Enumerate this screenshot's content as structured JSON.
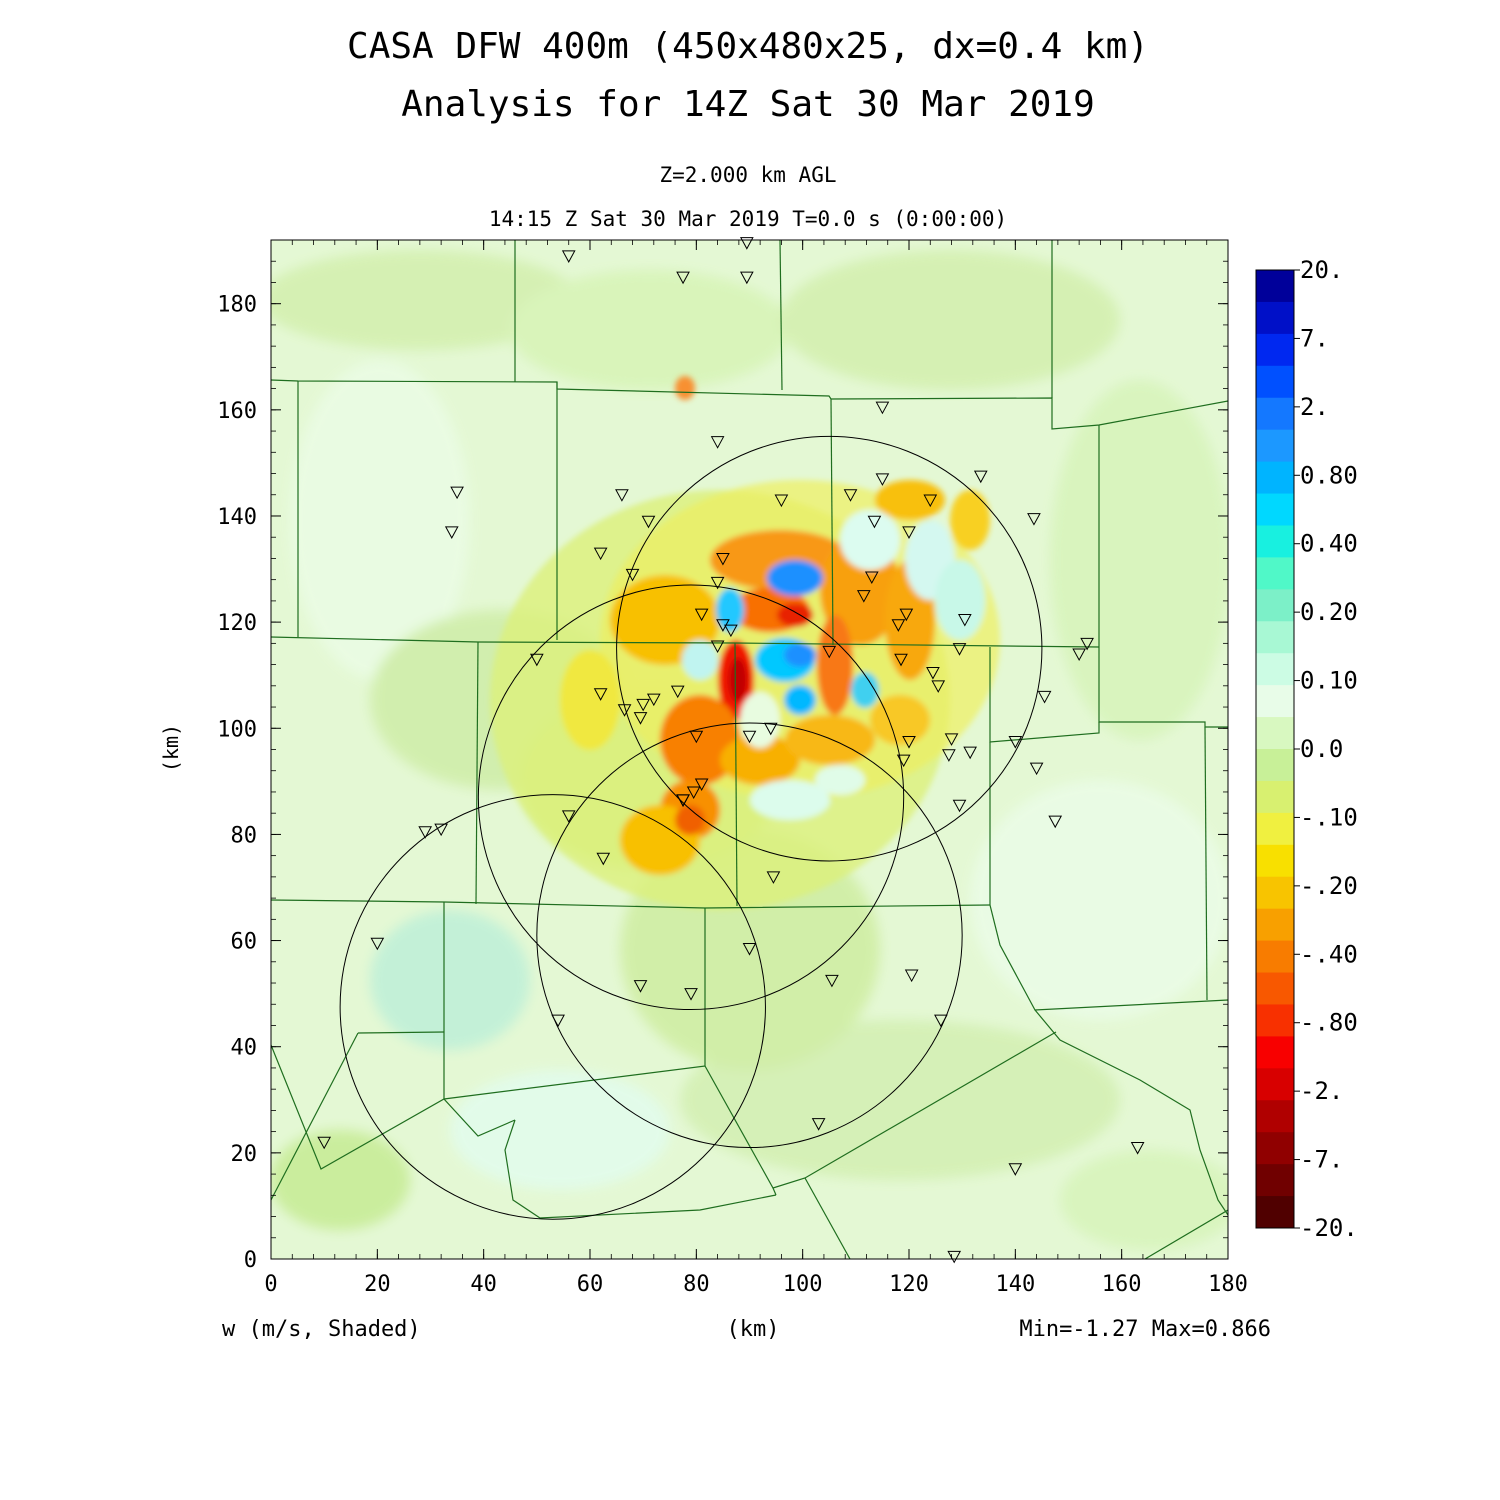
{
  "header": {
    "title_line1": "CASA DFW 400m (450x480x25, dx=0.4 km)",
    "title_line2": "Analysis for 14Z Sat 30 Mar 2019",
    "level": "Z=2.000 km AGL",
    "time": "14:15 Z Sat 30 Mar 2019    T=0.0 s (0:00:00)"
  },
  "footer": {
    "field_label": "w (m/s, Shaded)",
    "xunit": "(km)",
    "minmax": "Min=-1.27 Max=0.866"
  },
  "chart_data": {
    "type": "heatmap",
    "variable": "w",
    "xlabel": "(km)",
    "ylabel": "(km)",
    "xlim": [
      0,
      180
    ],
    "ylim": [
      0,
      192
    ],
    "xticks": [
      0,
      20,
      40,
      60,
      80,
      100,
      120,
      140,
      160,
      180
    ],
    "yticks": [
      0,
      20,
      40,
      60,
      80,
      100,
      120,
      140,
      160,
      180
    ],
    "min": -1.27,
    "max": 0.866,
    "colorbar": {
      "labels": [
        "20.",
        "7.",
        "2.",
        "0.80",
        "0.40",
        "0.20",
        "0.10",
        "0.0",
        "-.10",
        "-.20",
        "-.40",
        "-.80",
        "-2.",
        "-7.",
        "-20."
      ],
      "colors_top_to_bottom": [
        "#00009a",
        "#0010c8",
        "#0028f0",
        "#0050ff",
        "#1478ff",
        "#1c98ff",
        "#00b4ff",
        "#00d8ff",
        "#18f0e0",
        "#50f8c8",
        "#7cf0c8",
        "#a8f8d4",
        "#ccfce4",
        "#e8fce8",
        "#d8f8c0",
        "#c8f098",
        "#d8f070",
        "#f0f040",
        "#f8e000",
        "#f8c400",
        "#f8a000",
        "#f87c00",
        "#f85800",
        "#f83000",
        "#f80000",
        "#d80000",
        "#b00000",
        "#900000",
        "#700000",
        "#500000"
      ]
    },
    "radar_rings": [
      {
        "center": [
          105,
          115
        ],
        "radius": 40
      },
      {
        "center": [
          79,
          87
        ],
        "radius": 40
      },
      {
        "center": [
          90,
          61
        ],
        "radius": 40
      },
      {
        "center": [
          53,
          47.5
        ],
        "radius": 40
      }
    ],
    "stations": [
      [
        56,
        189
      ],
      [
        89.5,
        191.5
      ],
      [
        89.5,
        185
      ],
      [
        35,
        144.5
      ],
      [
        34,
        137
      ],
      [
        66,
        144
      ],
      [
        71,
        139
      ],
      [
        84,
        154
      ],
      [
        77.5,
        185
      ],
      [
        115,
        160.5
      ],
      [
        115,
        147
      ],
      [
        109,
        144
      ],
      [
        96,
        143
      ],
      [
        124,
        143
      ],
      [
        133.5,
        147.5
      ],
      [
        143.5,
        139.5
      ],
      [
        113.5,
        139
      ],
      [
        120,
        137
      ],
      [
        62,
        133
      ],
      [
        68,
        129
      ],
      [
        85,
        132
      ],
      [
        84,
        127.5
      ],
      [
        113,
        128.5
      ],
      [
        111.5,
        125
      ],
      [
        81,
        121.5
      ],
      [
        119.5,
        121.5
      ],
      [
        118,
        119.5
      ],
      [
        130.5,
        120.5
      ],
      [
        85,
        119.5
      ],
      [
        86.5,
        118.5
      ],
      [
        84,
        115.5
      ],
      [
        105,
        114.5
      ],
      [
        118.5,
        113
      ],
      [
        129.5,
        115
      ],
      [
        124.5,
        110.5
      ],
      [
        125.5,
        108
      ],
      [
        50,
        113
      ],
      [
        153.5,
        116
      ],
      [
        152,
        114
      ],
      [
        62,
        106.5
      ],
      [
        76.5,
        107
      ],
      [
        72,
        105.5
      ],
      [
        66.5,
        103.5
      ],
      [
        69.5,
        102
      ],
      [
        70,
        104.5
      ],
      [
        145.5,
        106
      ],
      [
        80,
        98.5
      ],
      [
        90,
        98.5
      ],
      [
        94,
        100
      ],
      [
        128,
        98
      ],
      [
        120,
        97.5
      ],
      [
        119,
        94
      ],
      [
        127.5,
        95
      ],
      [
        131.5,
        95.5
      ],
      [
        140,
        97.5
      ],
      [
        144,
        92.5
      ],
      [
        81,
        89.5
      ],
      [
        79.5,
        88
      ],
      [
        77.5,
        86.5
      ],
      [
        77.5,
        86.5
      ],
      [
        129.5,
        85.5
      ],
      [
        147.5,
        82.5
      ],
      [
        56,
        83.5
      ],
      [
        29,
        80.5
      ],
      [
        32,
        81
      ],
      [
        62.5,
        75.5
      ],
      [
        94.5,
        72
      ],
      [
        20,
        59.5
      ],
      [
        90,
        58.5
      ],
      [
        69.5,
        51.5
      ],
      [
        79,
        50
      ],
      [
        105.5,
        52.5
      ],
      [
        120.5,
        53.5
      ],
      [
        126,
        45
      ],
      [
        54,
        45
      ],
      [
        103,
        25.5
      ],
      [
        10,
        22
      ],
      [
        140,
        17
      ],
      [
        163,
        21
      ],
      [
        128.5,
        0.5
      ]
    ]
  }
}
